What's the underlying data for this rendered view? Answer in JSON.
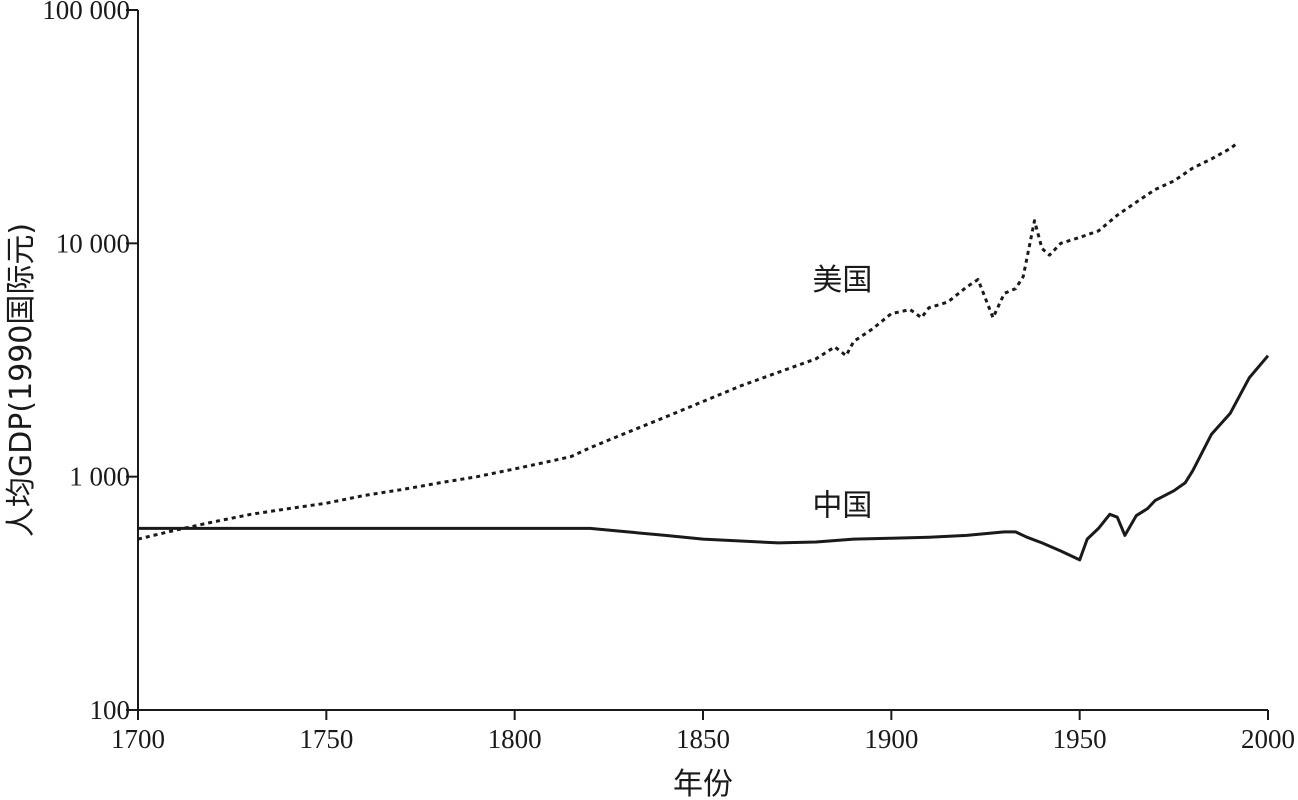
{
  "chart_data": {
    "type": "line",
    "xlabel": "年份",
    "ylabel": "人均GDP(1990国际元)",
    "xlim": [
      1700,
      2000
    ],
    "ylim": [
      100,
      100000
    ],
    "yscale": "log",
    "xticks": [
      1700,
      1750,
      1800,
      1850,
      1900,
      1950,
      2000
    ],
    "xtick_labels": [
      "1700",
      "1750",
      "1800",
      "1850",
      "1900",
      "1950",
      "2000"
    ],
    "yticks": [
      100,
      1000,
      10000,
      100000
    ],
    "ytick_labels": [
      "100",
      "1 000",
      "10 000",
      "100 000"
    ],
    "grid": false,
    "series": [
      {
        "name": "美国",
        "style": "dotted",
        "color": "#1a1a1a",
        "points": [
          [
            1700,
            540
          ],
          [
            1710,
            590
          ],
          [
            1720,
            640
          ],
          [
            1730,
            690
          ],
          [
            1740,
            730
          ],
          [
            1750,
            770
          ],
          [
            1760,
            830
          ],
          [
            1770,
            880
          ],
          [
            1780,
            940
          ],
          [
            1790,
            1000
          ],
          [
            1800,
            1080
          ],
          [
            1810,
            1170
          ],
          [
            1815,
            1220
          ],
          [
            1820,
            1330
          ],
          [
            1830,
            1550
          ],
          [
            1840,
            1800
          ],
          [
            1850,
            2100
          ],
          [
            1860,
            2450
          ],
          [
            1870,
            2800
          ],
          [
            1880,
            3200
          ],
          [
            1885,
            3600
          ],
          [
            1888,
            3300
          ],
          [
            1890,
            3800
          ],
          [
            1895,
            4300
          ],
          [
            1900,
            5000
          ],
          [
            1905,
            5200
          ],
          [
            1908,
            4800
          ],
          [
            1910,
            5300
          ],
          [
            1915,
            5600
          ],
          [
            1920,
            6500
          ],
          [
            1923,
            7000
          ],
          [
            1927,
            4800
          ],
          [
            1930,
            6100
          ],
          [
            1933,
            6400
          ],
          [
            1935,
            7200
          ],
          [
            1938,
            12500
          ],
          [
            1940,
            9500
          ],
          [
            1942,
            8900
          ],
          [
            1945,
            10000
          ],
          [
            1950,
            10600
          ],
          [
            1955,
            11300
          ],
          [
            1960,
            13200
          ],
          [
            1965,
            15000
          ],
          [
            1970,
            17000
          ],
          [
            1975,
            18500
          ],
          [
            1980,
            21000
          ],
          [
            1985,
            23000
          ],
          [
            1990,
            25500
          ],
          [
            1992,
            27000
          ]
        ]
      },
      {
        "name": "中国",
        "style": "solid",
        "color": "#1a1a1a",
        "points": [
          [
            1700,
            600
          ],
          [
            1720,
            600
          ],
          [
            1760,
            600
          ],
          [
            1800,
            600
          ],
          [
            1820,
            600
          ],
          [
            1830,
            580
          ],
          [
            1840,
            560
          ],
          [
            1850,
            540
          ],
          [
            1860,
            530
          ],
          [
            1870,
            520
          ],
          [
            1880,
            525
          ],
          [
            1890,
            540
          ],
          [
            1900,
            545
          ],
          [
            1910,
            550
          ],
          [
            1920,
            560
          ],
          [
            1930,
            580
          ],
          [
            1933,
            580
          ],
          [
            1936,
            550
          ],
          [
            1940,
            520
          ],
          [
            1945,
            480
          ],
          [
            1950,
            440
          ],
          [
            1952,
            540
          ],
          [
            1955,
            600
          ],
          [
            1958,
            690
          ],
          [
            1960,
            670
          ],
          [
            1962,
            560
          ],
          [
            1965,
            680
          ],
          [
            1968,
            730
          ],
          [
            1970,
            790
          ],
          [
            1975,
            870
          ],
          [
            1978,
            940
          ],
          [
            1980,
            1060
          ],
          [
            1985,
            1520
          ],
          [
            1990,
            1870
          ],
          [
            1995,
            2650
          ],
          [
            2000,
            3300
          ]
        ]
      }
    ],
    "annotations": [
      {
        "text": "美国",
        "x": 1887,
        "y": 6300
      },
      {
        "text": "中国",
        "x": 1887,
        "y": 680
      }
    ]
  }
}
